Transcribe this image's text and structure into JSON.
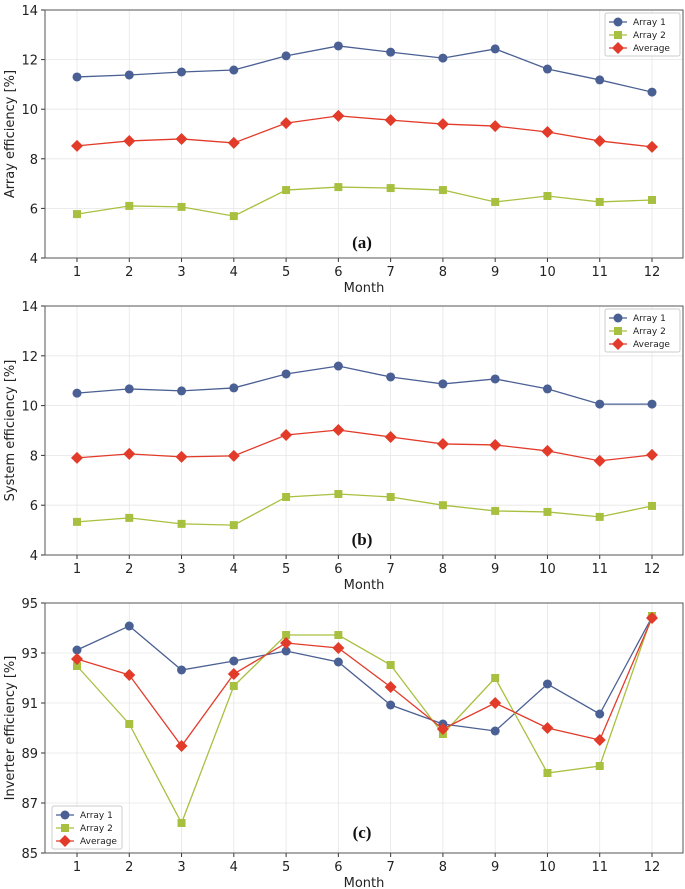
{
  "chart_data": [
    {
      "type": "line",
      "panel_label": "(a)",
      "xlabel": "Month",
      "ylabel": "Array efficiency [%]",
      "x": [
        1,
        2,
        3,
        4,
        5,
        6,
        7,
        8,
        9,
        10,
        11,
        12
      ],
      "xticks": [
        "1",
        "2",
        "3",
        "4",
        "5",
        "6",
        "7",
        "8",
        "9",
        "10",
        "11",
        "12"
      ],
      "ylim": [
        4,
        14
      ],
      "yticks": [
        "4",
        "6",
        "8",
        "10",
        "12",
        "14"
      ],
      "grid": true,
      "legend": "top-right",
      "series": [
        {
          "name": "Array 1",
          "marker": "circle",
          "color": "#4a5f93",
          "values": [
            11.3,
            11.38,
            11.5,
            11.58,
            12.15,
            12.55,
            12.3,
            12.06,
            12.43,
            11.62,
            11.18,
            10.69
          ]
        },
        {
          "name": "Array 2",
          "marker": "square",
          "color": "#a8c040",
          "values": [
            5.77,
            6.1,
            6.06,
            5.69,
            6.74,
            6.86,
            6.82,
            6.74,
            6.26,
            6.5,
            6.26,
            6.34
          ]
        },
        {
          "name": "Average",
          "marker": "diamond",
          "color": "#e23b2a",
          "values": [
            8.52,
            8.72,
            8.8,
            8.64,
            9.44,
            9.73,
            9.56,
            9.4,
            9.32,
            9.08,
            8.72,
            8.48
          ]
        }
      ]
    },
    {
      "type": "line",
      "panel_label": "(b)",
      "xlabel": "Month",
      "ylabel": "System efficiency [%]",
      "x": [
        1,
        2,
        3,
        4,
        5,
        6,
        7,
        8,
        9,
        10,
        11,
        12
      ],
      "xticks": [
        "1",
        "2",
        "3",
        "4",
        "5",
        "6",
        "7",
        "8",
        "9",
        "10",
        "11",
        "12"
      ],
      "ylim": [
        4,
        14
      ],
      "yticks": [
        "4",
        "6",
        "8",
        "10",
        "12",
        "14"
      ],
      "grid": true,
      "legend": "top-right",
      "series": [
        {
          "name": "Array 1",
          "marker": "circle",
          "color": "#4a5f93",
          "values": [
            10.5,
            10.67,
            10.59,
            10.71,
            11.27,
            11.59,
            11.15,
            10.87,
            11.07,
            10.67,
            10.06,
            10.06
          ]
        },
        {
          "name": "Array 2",
          "marker": "square",
          "color": "#a8c040",
          "values": [
            5.33,
            5.49,
            5.25,
            5.2,
            6.33,
            6.45,
            6.33,
            6.0,
            5.77,
            5.73,
            5.53,
            5.97
          ]
        },
        {
          "name": "Average",
          "marker": "diamond",
          "color": "#e23b2a",
          "values": [
            7.9,
            8.06,
            7.94,
            7.98,
            8.82,
            9.02,
            8.74,
            8.46,
            8.42,
            8.18,
            7.78,
            8.02
          ]
        }
      ]
    },
    {
      "type": "line",
      "panel_label": "(c)",
      "xlabel": "Month",
      "ylabel": "Inverter efficiency [%]",
      "x": [
        1,
        2,
        3,
        4,
        5,
        6,
        7,
        8,
        9,
        10,
        11,
        12
      ],
      "xticks": [
        "1",
        "2",
        "3",
        "4",
        "5",
        "6",
        "7",
        "8",
        "9",
        "10",
        "11",
        "12"
      ],
      "ylim": [
        85,
        95
      ],
      "yticks": [
        "85",
        "87",
        "89",
        "91",
        "93",
        "95"
      ],
      "grid": true,
      "legend": "bottom-left",
      "series": [
        {
          "name": "Array 1",
          "marker": "circle",
          "color": "#4a5f93",
          "values": [
            93.12,
            94.08,
            92.32,
            92.68,
            93.08,
            92.64,
            90.92,
            90.16,
            89.88,
            91.76,
            90.56,
            94.44
          ]
        },
        {
          "name": "Array 2",
          "marker": "square",
          "color": "#a8c040",
          "values": [
            92.48,
            90.16,
            86.2,
            91.68,
            93.72,
            93.72,
            92.52,
            89.76,
            92.0,
            88.2,
            88.48,
            94.48
          ]
        },
        {
          "name": "Average",
          "marker": "diamond",
          "color": "#e23b2a",
          "values": [
            92.76,
            92.12,
            89.28,
            92.16,
            93.4,
            93.2,
            91.64,
            89.96,
            91.0,
            90.0,
            89.52,
            94.4
          ]
        }
      ]
    }
  ]
}
